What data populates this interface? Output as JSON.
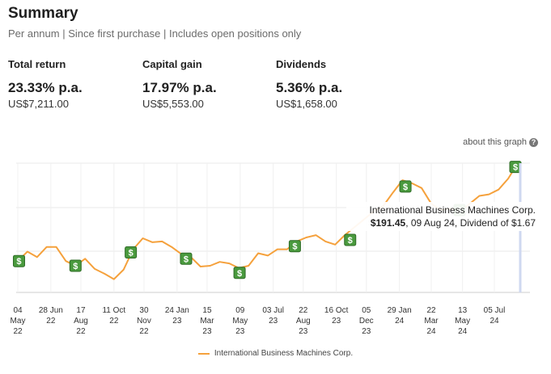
{
  "summary": {
    "title": "Summary",
    "subtitle": "Per annum | Since first purchase | Includes open positions only"
  },
  "metrics": [
    {
      "label": "Total return",
      "percent": "23.33% p.a.",
      "amount": "US$7,211.00"
    },
    {
      "label": "Capital gain",
      "percent": "17.97% p.a.",
      "amount": "US$5,553.00"
    },
    {
      "label": "Dividends",
      "percent": "5.36% p.a.",
      "amount": "US$1,658.00"
    }
  ],
  "about_link": "about this graph",
  "about_icon": "question-icon",
  "dividend_icon": "dollar-icon",
  "line_color": "#f5a13c",
  "tooltip": {
    "series": "International Business Machines Corp.",
    "price": "$191.45",
    "detail": ", 09 Aug 24, Dividend of $1.67"
  },
  "chart_data": {
    "type": "line",
    "series": [
      {
        "name": "International Business Machines Corp.",
        "x": [
          "2022-05-04",
          "2022-05-20",
          "2022-06-05",
          "2022-06-21",
          "2022-07-07",
          "2022-07-23",
          "2022-08-08",
          "2022-08-24",
          "2022-09-09",
          "2022-09-25",
          "2022-10-11",
          "2022-10-27",
          "2022-11-12",
          "2022-11-28",
          "2022-12-14",
          "2022-12-30",
          "2023-01-15",
          "2023-01-31",
          "2023-02-16",
          "2023-03-04",
          "2023-03-20",
          "2023-04-05",
          "2023-04-21",
          "2023-05-07",
          "2023-05-23",
          "2023-06-08",
          "2023-06-24",
          "2023-07-10",
          "2023-07-26",
          "2023-08-11",
          "2023-08-27",
          "2023-09-12",
          "2023-09-28",
          "2023-10-14",
          "2023-10-30",
          "2023-11-15",
          "2023-12-01",
          "2023-12-17",
          "2024-01-02",
          "2024-01-18",
          "2024-02-03",
          "2024-02-19",
          "2024-03-06",
          "2024-03-22",
          "2024-04-07",
          "2024-04-23",
          "2024-05-09",
          "2024-05-25",
          "2024-06-10",
          "2024-06-26",
          "2024-07-12",
          "2024-07-28",
          "2024-08-09"
        ],
        "values": [
          131.5,
          137.5,
          134,
          140.5,
          140.5,
          131.5,
          128.5,
          133,
          126.5,
          123.5,
          120,
          126,
          139,
          146,
          143.5,
          144,
          140.5,
          136,
          134,
          128,
          128.5,
          131,
          130,
          127,
          128.5,
          136.5,
          135,
          139,
          139,
          144,
          146.5,
          148,
          144,
          142,
          148,
          153,
          158,
          163,
          166.5,
          175,
          183,
          181,
          178,
          168,
          164,
          165,
          163,
          168,
          173,
          174,
          177,
          184,
          191.45
        ]
      }
    ],
    "x_tick_labels": [
      [
        "04",
        "May",
        "22"
      ],
      [
        "28 Jun",
        "22"
      ],
      [
        "17",
        "Aug",
        "22"
      ],
      [
        "11 Oct",
        "22"
      ],
      [
        "30",
        "Nov",
        "22"
      ],
      [
        "24 Jan",
        "23"
      ],
      [
        "15",
        "Mar",
        "23"
      ],
      [
        "09",
        "May",
        "23"
      ],
      [
        "03 Jul",
        "23"
      ],
      [
        "22",
        "Aug",
        "23"
      ],
      [
        "16 Oct",
        "23"
      ],
      [
        "05",
        "Dec",
        "23"
      ],
      [
        "29 Jan",
        "24"
      ],
      [
        "22",
        "Mar",
        "24"
      ],
      [
        "13",
        "May",
        "24"
      ],
      [
        "05 Jul",
        "24"
      ]
    ],
    "x_tick_dates": [
      "2022-05-04",
      "2022-06-28",
      "2022-08-17",
      "2022-10-11",
      "2022-11-30",
      "2023-01-24",
      "2023-03-15",
      "2023-05-09",
      "2023-07-03",
      "2023-08-22",
      "2023-10-16",
      "2023-12-05",
      "2024-01-29",
      "2024-03-22",
      "2024-05-13",
      "2024-07-05"
    ],
    "dividends": [
      {
        "date": "2022-05-06",
        "value": 131.5
      },
      {
        "date": "2022-08-08",
        "value": 128.5
      },
      {
        "date": "2022-11-08",
        "value": 137
      },
      {
        "date": "2023-02-08",
        "value": 133
      },
      {
        "date": "2023-05-08",
        "value": 124
      },
      {
        "date": "2023-08-08",
        "value": 141
      },
      {
        "date": "2023-11-08",
        "value": 145
      },
      {
        "date": "2024-02-08",
        "value": 179
      },
      {
        "date": "2024-05-08",
        "value": 164
      },
      {
        "date": "2024-08-09",
        "value": 191.45
      }
    ],
    "ylim": [
      110,
      200
    ],
    "grid": true,
    "legend": "bottom-center"
  }
}
